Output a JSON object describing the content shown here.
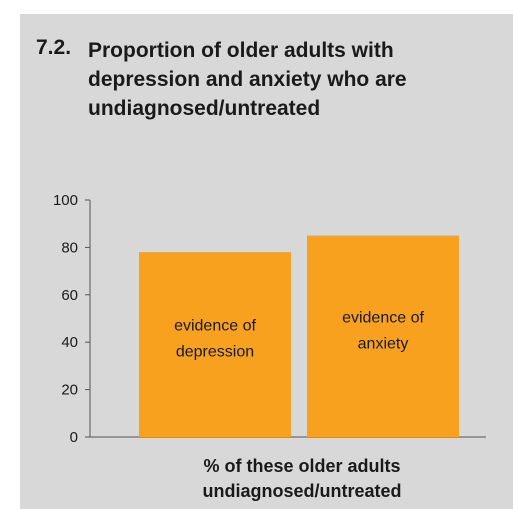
{
  "title_number": "7.2.",
  "title": "Proportion of older adults with depression and anxiety who are undiagnosed/untreated",
  "colors": {
    "bar": "#f7a11f",
    "panel": "#d8d8d8",
    "axis": "#555555"
  },
  "chart_data": {
    "type": "bar",
    "categories": [
      "evidence of depression",
      "evidence of anxiety"
    ],
    "category_lines": [
      [
        "evidence of",
        "depression"
      ],
      [
        "evidence of",
        "anxiety"
      ]
    ],
    "values": [
      78,
      85
    ],
    "xlabel_lines": [
      "% of these older adults",
      "undiagnosed/untreated"
    ],
    "ylim": [
      0,
      100
    ],
    "yticks": [
      "0",
      "20",
      "40",
      "60",
      "80",
      "100"
    ],
    "grid": false
  }
}
